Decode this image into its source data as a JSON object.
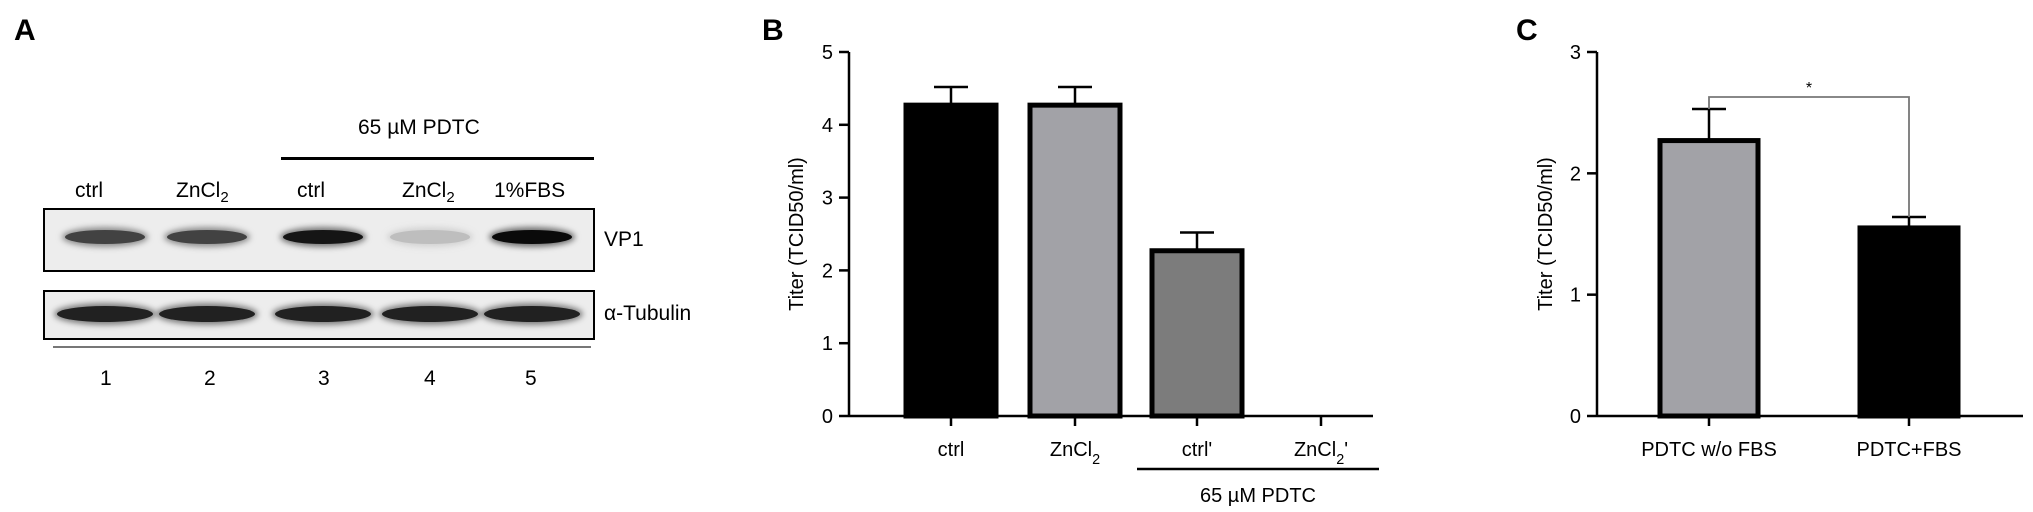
{
  "panels": {
    "a": "A",
    "b": "B",
    "c": "C"
  },
  "western_blot": {
    "treatment_header": "65 µM PDTC",
    "lanes": [
      {
        "label": "ctrl",
        "sub": "",
        "number": "1"
      },
      {
        "label": "ZnCl",
        "sub": "2",
        "number": "2"
      },
      {
        "label": "ctrl",
        "sub": "",
        "number": "3"
      },
      {
        "label": "ZnCl",
        "sub": "2",
        "number": "4"
      },
      {
        "label": "1%FBS",
        "sub": "",
        "number": "5"
      }
    ],
    "rows": [
      {
        "label": "VP1",
        "intensities": [
          0.75,
          0.75,
          0.95,
          0.2,
          1.0
        ]
      },
      {
        "label": "α-Tubulin",
        "intensities": [
          0.9,
          0.9,
          0.9,
          0.9,
          0.9
        ]
      }
    ]
  },
  "colors": {
    "black_bar": "#000000",
    "light_gray_bar": "#a2a2a7",
    "dark_gray_bar": "#7c7c7c",
    "significance_line": "#777777"
  },
  "chart_data": [
    {
      "type": "bar",
      "ylabel": "Titer (TCID50/ml)",
      "ylim": [
        0,
        5
      ],
      "yticks": [
        "0",
        "1",
        "2",
        "3",
        "4",
        "5"
      ],
      "categories": [
        {
          "label": "ctrl",
          "sub": "",
          "suffix": ""
        },
        {
          "label": "ZnCl",
          "sub": "2",
          "suffix": ""
        },
        {
          "label": "ctrl'",
          "sub": "",
          "suffix": ""
        },
        {
          "label": "ZnCl",
          "sub": "2",
          "suffix": "'"
        }
      ],
      "values": [
        4.27,
        4.27,
        2.27,
        0
      ],
      "errors": [
        0.25,
        0.25,
        0.25,
        0
      ],
      "bar_colors": [
        "#000000",
        "#a2a2a7",
        "#7c7c7c",
        "#a2a2a7"
      ],
      "group_label": "65 µM PDTC",
      "group_categories": [
        2,
        3
      ]
    },
    {
      "type": "bar",
      "ylabel": "Titer (TCID50/ml)",
      "ylim": [
        0,
        3
      ],
      "yticks": [
        "0",
        "1",
        "2",
        "3"
      ],
      "categories": [
        {
          "label": "PDTC w/o FBS",
          "sub": "",
          "suffix": ""
        },
        {
          "label": "PDTC+FBS",
          "sub": "",
          "suffix": ""
        }
      ],
      "values": [
        2.27,
        1.55
      ],
      "errors": [
        0.26,
        0.09
      ],
      "bar_colors": [
        "#a2a2a7",
        "#000000"
      ],
      "significance": {
        "between": [
          0,
          1
        ],
        "label": "*"
      }
    }
  ]
}
